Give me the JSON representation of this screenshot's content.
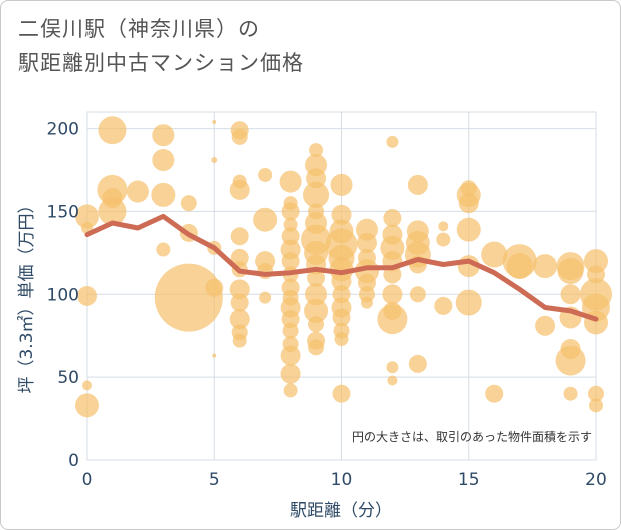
{
  "chart_data": {
    "type": "scatter",
    "title_line1": "二俣川駅（神奈川県）の",
    "title_line2": "駅距離別中古マンション価格",
    "xlabel": "駅距離（分）",
    "ylabel": "坪（3.3㎡）単価（万円）",
    "annotation": "円の大きさは、取引のあった物件面積を示す",
    "xlim": [
      0,
      20
    ],
    "ylim": [
      0,
      210
    ],
    "xticks": [
      "0",
      "5",
      "10",
      "15",
      "20"
    ],
    "yticks": [
      "0",
      "50",
      "100",
      "150",
      "200"
    ],
    "grid": true,
    "colors": {
      "bubble": "#f5c06e",
      "line": "#cd6b55",
      "grid": "#d5dde5",
      "text": "#2f4a66"
    },
    "bubbles": [
      {
        "x": 0,
        "y": 147,
        "s": 12
      },
      {
        "x": 0,
        "y": 99,
        "s": 10
      },
      {
        "x": 0,
        "y": 33,
        "s": 12
      },
      {
        "x": 0,
        "y": 45,
        "s": 5
      },
      {
        "x": 0,
        "y": 140,
        "s": 6
      },
      {
        "x": 1,
        "y": 199,
        "s": 14
      },
      {
        "x": 1,
        "y": 163,
        "s": 15
      },
      {
        "x": 1,
        "y": 150,
        "s": 14
      },
      {
        "x": 1,
        "y": 158,
        "s": 10
      },
      {
        "x": 2,
        "y": 162,
        "s": 11
      },
      {
        "x": 3,
        "y": 196,
        "s": 11
      },
      {
        "x": 3,
        "y": 181,
        "s": 11
      },
      {
        "x": 3,
        "y": 160,
        "s": 12
      },
      {
        "x": 3,
        "y": 127,
        "s": 7
      },
      {
        "x": 4,
        "y": 98,
        "s": 34
      },
      {
        "x": 4,
        "y": 155,
        "s": 8
      },
      {
        "x": 4,
        "y": 137,
        "s": 9
      },
      {
        "x": 5,
        "y": 104,
        "s": 9
      },
      {
        "x": 5,
        "y": 128,
        "s": 7
      },
      {
        "x": 5,
        "y": 181,
        "s": 3
      },
      {
        "x": 5,
        "y": 204,
        "s": 2
      },
      {
        "x": 5,
        "y": 63,
        "s": 2
      },
      {
        "x": 6,
        "y": 199,
        "s": 9
      },
      {
        "x": 6,
        "y": 195,
        "s": 8
      },
      {
        "x": 6,
        "y": 168,
        "s": 7
      },
      {
        "x": 6,
        "y": 163,
        "s": 10
      },
      {
        "x": 6,
        "y": 135,
        "s": 9
      },
      {
        "x": 6,
        "y": 122,
        "s": 9
      },
      {
        "x": 6,
        "y": 115,
        "s": 8
      },
      {
        "x": 6,
        "y": 103,
        "s": 10
      },
      {
        "x": 6,
        "y": 95,
        "s": 9
      },
      {
        "x": 6,
        "y": 85,
        "s": 10
      },
      {
        "x": 6,
        "y": 77,
        "s": 8
      },
      {
        "x": 6,
        "y": 72,
        "s": 7
      },
      {
        "x": 7,
        "y": 172,
        "s": 7
      },
      {
        "x": 7,
        "y": 145,
        "s": 12
      },
      {
        "x": 7,
        "y": 120,
        "s": 10
      },
      {
        "x": 7,
        "y": 114,
        "s": 8
      },
      {
        "x": 7,
        "y": 98,
        "s": 6
      },
      {
        "x": 8,
        "y": 168,
        "s": 11
      },
      {
        "x": 8,
        "y": 155,
        "s": 7
      },
      {
        "x": 8,
        "y": 150,
        "s": 9
      },
      {
        "x": 8,
        "y": 142,
        "s": 7
      },
      {
        "x": 8,
        "y": 135,
        "s": 9
      },
      {
        "x": 8,
        "y": 127,
        "s": 10
      },
      {
        "x": 8,
        "y": 120,
        "s": 9
      },
      {
        "x": 8,
        "y": 112,
        "s": 8
      },
      {
        "x": 8,
        "y": 104,
        "s": 9
      },
      {
        "x": 8,
        "y": 98,
        "s": 8
      },
      {
        "x": 8,
        "y": 92,
        "s": 10
      },
      {
        "x": 8,
        "y": 85,
        "s": 9
      },
      {
        "x": 8,
        "y": 78,
        "s": 8
      },
      {
        "x": 8,
        "y": 70,
        "s": 8
      },
      {
        "x": 8,
        "y": 63,
        "s": 10
      },
      {
        "x": 8,
        "y": 52,
        "s": 10
      },
      {
        "x": 8,
        "y": 42,
        "s": 7
      },
      {
        "x": 9,
        "y": 187,
        "s": 7
      },
      {
        "x": 9,
        "y": 178,
        "s": 11
      },
      {
        "x": 9,
        "y": 170,
        "s": 10
      },
      {
        "x": 9,
        "y": 160,
        "s": 13
      },
      {
        "x": 9,
        "y": 150,
        "s": 8
      },
      {
        "x": 9,
        "y": 143,
        "s": 11
      },
      {
        "x": 9,
        "y": 133,
        "s": 15
      },
      {
        "x": 9,
        "y": 125,
        "s": 12
      },
      {
        "x": 9,
        "y": 118,
        "s": 10
      },
      {
        "x": 9,
        "y": 110,
        "s": 9
      },
      {
        "x": 9,
        "y": 100,
        "s": 11
      },
      {
        "x": 9,
        "y": 90,
        "s": 12
      },
      {
        "x": 9,
        "y": 82,
        "s": 8
      },
      {
        "x": 9,
        "y": 72,
        "s": 9
      },
      {
        "x": 9,
        "y": 68,
        "s": 8
      },
      {
        "x": 10,
        "y": 166,
        "s": 11
      },
      {
        "x": 10,
        "y": 148,
        "s": 10
      },
      {
        "x": 10,
        "y": 138,
        "s": 12
      },
      {
        "x": 10,
        "y": 130,
        "s": 16
      },
      {
        "x": 10,
        "y": 122,
        "s": 13
      },
      {
        "x": 10,
        "y": 115,
        "s": 12
      },
      {
        "x": 10,
        "y": 108,
        "s": 10
      },
      {
        "x": 10,
        "y": 100,
        "s": 9
      },
      {
        "x": 10,
        "y": 92,
        "s": 10
      },
      {
        "x": 10,
        "y": 86,
        "s": 9
      },
      {
        "x": 10,
        "y": 78,
        "s": 8
      },
      {
        "x": 10,
        "y": 73,
        "s": 7
      },
      {
        "x": 10,
        "y": 40,
        "s": 9
      },
      {
        "x": 11,
        "y": 139,
        "s": 11
      },
      {
        "x": 11,
        "y": 131,
        "s": 10
      },
      {
        "x": 11,
        "y": 122,
        "s": 9
      },
      {
        "x": 11,
        "y": 114,
        "s": 12
      },
      {
        "x": 11,
        "y": 107,
        "s": 9
      },
      {
        "x": 11,
        "y": 100,
        "s": 8
      },
      {
        "x": 11,
        "y": 95,
        "s": 6
      },
      {
        "x": 12,
        "y": 192,
        "s": 6
      },
      {
        "x": 12,
        "y": 146,
        "s": 9
      },
      {
        "x": 12,
        "y": 136,
        "s": 10
      },
      {
        "x": 12,
        "y": 128,
        "s": 12
      },
      {
        "x": 12,
        "y": 120,
        "s": 10
      },
      {
        "x": 12,
        "y": 112,
        "s": 9
      },
      {
        "x": 12,
        "y": 100,
        "s": 10
      },
      {
        "x": 12,
        "y": 90,
        "s": 9
      },
      {
        "x": 12,
        "y": 85,
        "s": 15
      },
      {
        "x": 12,
        "y": 56,
        "s": 6
      },
      {
        "x": 12,
        "y": 48,
        "s": 5
      },
      {
        "x": 13,
        "y": 166,
        "s": 10
      },
      {
        "x": 13,
        "y": 138,
        "s": 11
      },
      {
        "x": 13,
        "y": 131,
        "s": 12
      },
      {
        "x": 13,
        "y": 124,
        "s": 13
      },
      {
        "x": 13,
        "y": 118,
        "s": 9
      },
      {
        "x": 13,
        "y": 100,
        "s": 8
      },
      {
        "x": 13,
        "y": 58,
        "s": 9
      },
      {
        "x": 14,
        "y": 141,
        "s": 5
      },
      {
        "x": 14,
        "y": 133,
        "s": 7
      },
      {
        "x": 14,
        "y": 93,
        "s": 9
      },
      {
        "x": 15,
        "y": 164,
        "s": 8
      },
      {
        "x": 15,
        "y": 160,
        "s": 12
      },
      {
        "x": 15,
        "y": 155,
        "s": 10
      },
      {
        "x": 15,
        "y": 139,
        "s": 12
      },
      {
        "x": 15,
        "y": 117,
        "s": 11
      },
      {
        "x": 15,
        "y": 95,
        "s": 13
      },
      {
        "x": 16,
        "y": 124,
        "s": 13
      },
      {
        "x": 16,
        "y": 40,
        "s": 9
      },
      {
        "x": 17,
        "y": 120,
        "s": 17
      },
      {
        "x": 17,
        "y": 117,
        "s": 13
      },
      {
        "x": 18,
        "y": 117,
        "s": 12
      },
      {
        "x": 18,
        "y": 81,
        "s": 10
      },
      {
        "x": 19,
        "y": 117,
        "s": 14
      },
      {
        "x": 19,
        "y": 114,
        "s": 13
      },
      {
        "x": 19,
        "y": 100,
        "s": 10
      },
      {
        "x": 19,
        "y": 86,
        "s": 11
      },
      {
        "x": 19,
        "y": 67,
        "s": 10
      },
      {
        "x": 19,
        "y": 60,
        "s": 15
      },
      {
        "x": 19,
        "y": 40,
        "s": 7
      },
      {
        "x": 20,
        "y": 120,
        "s": 12
      },
      {
        "x": 20,
        "y": 112,
        "s": 9
      },
      {
        "x": 20,
        "y": 100,
        "s": 16
      },
      {
        "x": 20,
        "y": 92,
        "s": 14
      },
      {
        "x": 20,
        "y": 83,
        "s": 12
      },
      {
        "x": 20,
        "y": 40,
        "s": 8
      },
      {
        "x": 20,
        "y": 33,
        "s": 7
      }
    ],
    "series": [
      {
        "x": [
          0,
          1,
          2,
          3,
          4,
          5,
          6,
          7,
          8,
          9,
          10,
          11,
          12,
          13,
          14,
          15,
          16,
          17,
          18,
          19,
          20
        ],
        "y": [
          136,
          143,
          140,
          147,
          136,
          128,
          114,
          112,
          113,
          115,
          113,
          116,
          116,
          121,
          118,
          120,
          113,
          103,
          92,
          90,
          85
        ]
      }
    ]
  }
}
